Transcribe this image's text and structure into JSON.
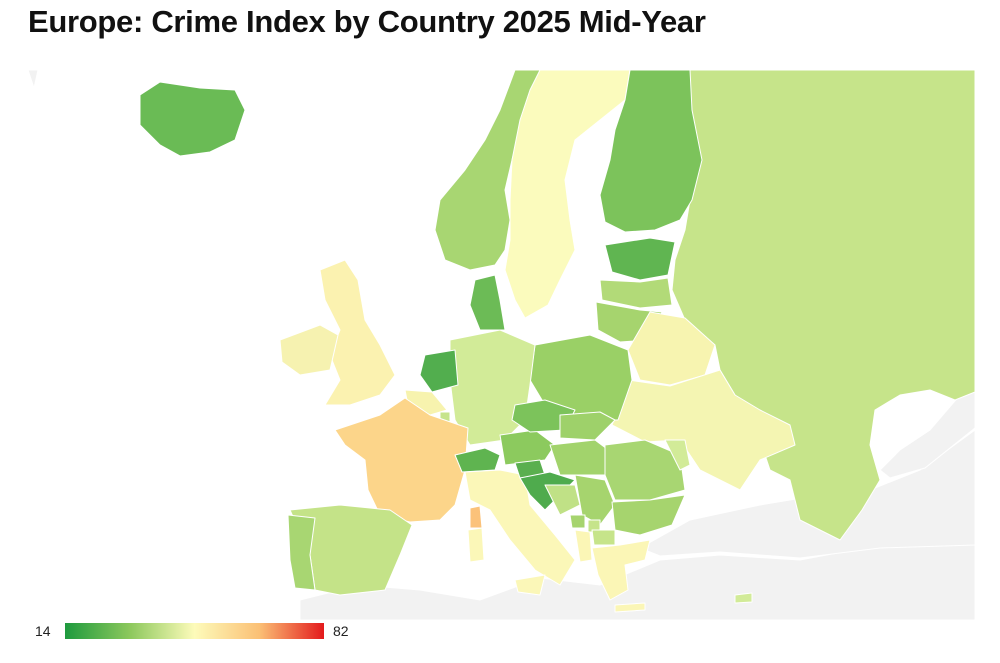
{
  "title": "Europe: Crime Index by Country 2025 Mid-Year",
  "legend": {
    "min_label": "14",
    "max_label": "82",
    "min": 14,
    "max": 82
  },
  "colors": {
    "scale": [
      "#1e9a3e",
      "#8cc85c",
      "#fdfbba",
      "#fbc075",
      "#e31a1c"
    ],
    "no_data": "#f2f2f2",
    "border": "#ffffff"
  }
}
